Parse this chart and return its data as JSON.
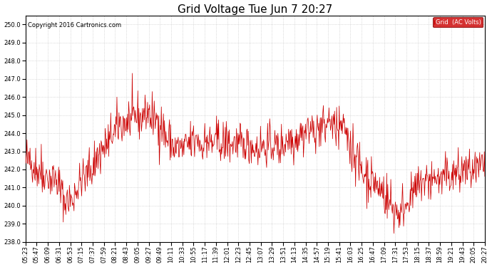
{
  "title": "Grid Voltage Tue Jun 7 20:27",
  "copyright": "Copyright 2016 Cartronics.com",
  "legend_label": "Grid  (AC Volts)",
  "legend_bg": "#cc0000",
  "legend_text_color": "#ffffff",
  "line_color": "#cc0000",
  "bg_color": "#ffffff",
  "grid_color": "#b0b0b0",
  "ylim": [
    238.0,
    250.5
  ],
  "yticks": [
    238.0,
    239.0,
    240.0,
    241.0,
    242.0,
    243.0,
    244.0,
    245.0,
    246.0,
    247.0,
    248.0,
    249.0,
    250.0
  ],
  "title_fontsize": 11,
  "tick_fontsize": 6,
  "copyright_fontsize": 6,
  "xtick_labels": [
    "05:23",
    "05:47",
    "06:09",
    "06:31",
    "06:53",
    "07:15",
    "07:37",
    "07:59",
    "08:21",
    "08:43",
    "09:05",
    "09:27",
    "09:49",
    "10:11",
    "10:33",
    "10:55",
    "11:17",
    "11:39",
    "12:01",
    "12:23",
    "12:45",
    "13:07",
    "13:29",
    "13:51",
    "14:13",
    "14:35",
    "14:57",
    "15:19",
    "15:41",
    "16:03",
    "16:25",
    "16:47",
    "17:09",
    "17:31",
    "17:53",
    "18:15",
    "18:37",
    "18:59",
    "19:21",
    "19:43",
    "20:05",
    "20:27"
  ],
  "num_points": 900,
  "seed": 42,
  "figwidth": 6.9,
  "figheight": 3.75,
  "dpi": 100
}
